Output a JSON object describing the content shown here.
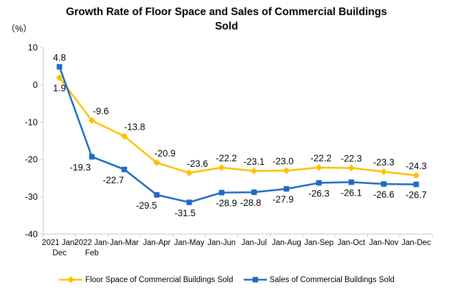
{
  "chart_data": {
    "type": "line",
    "title": "Growth Rate of Floor Space and Sales of Commercial Buildings Sold",
    "unit_label": "（%）",
    "categories": [
      "2021 Jan-Dec",
      "2022 Jan-Feb",
      "Jan-Mar",
      "Jan-Apr",
      "Jan-May",
      "Jan-Jun",
      "Jan-Jul",
      "Jan-Aug",
      "Jan-Sep",
      "Jan-Oct",
      "Jan-Nov",
      "Jan-Dec"
    ],
    "series": [
      {
        "name": "Floor Space of Commercial Buildings Sold",
        "color": "#FFC000",
        "marker": "diamond",
        "values": [
          1.9,
          -9.6,
          -13.8,
          -20.9,
          -23.6,
          -22.2,
          -23.1,
          -23.0,
          -22.2,
          -22.3,
          -23.3,
          -24.3
        ]
      },
      {
        "name": "Sales of Commercial Buildings Sold",
        "color": "#1F6BC4",
        "marker": "square",
        "values": [
          4.8,
          -19.3,
          -22.7,
          -29.5,
          -31.5,
          -28.9,
          -28.8,
          -27.9,
          -26.3,
          -26.1,
          -26.6,
          -26.7
        ]
      }
    ],
    "ylim": [
      -40,
      10
    ],
    "ytick_step": 10,
    "ytick_labels": [
      "10",
      "0",
      "-10",
      "-20",
      "-30",
      "-40"
    ],
    "axis_color": "#C6C6C6",
    "data_labels": true,
    "grid": false,
    "legend_position": "bottom"
  }
}
